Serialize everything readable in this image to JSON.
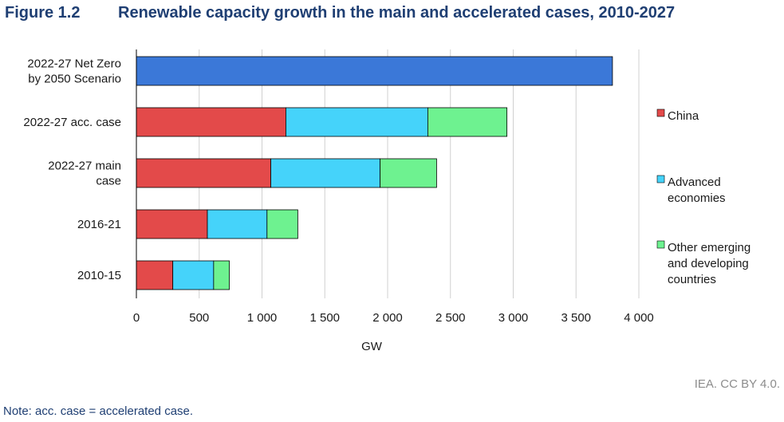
{
  "figure_label": "Figure 1.2",
  "title": "Renewable capacity growth in the main and accelerated cases, 2010-2027",
  "credit": "IEA. CC BY 4.0.",
  "note": "Note: acc. case = accelerated case.",
  "colors": {
    "china": "#e34a4a",
    "advanced": "#45d3fa",
    "other": "#6ef290",
    "netzero": "#3b78d8",
    "grid": "#d0d0d0",
    "axis": "#000000"
  },
  "chart_data": {
    "type": "bar",
    "orientation": "horizontal",
    "stacked": true,
    "categories": [
      "2022-27 Net Zero by 2050 Scenario",
      "2022-27 acc. case",
      "2022-27 main case",
      "2016-21",
      "2010-15"
    ],
    "category_lines": [
      [
        "2022-27 Net Zero",
        "by 2050 Scenario"
      ],
      [
        "2022-27 acc. case"
      ],
      [
        "2022-27 main",
        "case"
      ],
      [
        "2016-21"
      ],
      [
        "2010-15"
      ]
    ],
    "series": [
      {
        "name": "China",
        "color": "#e34a4a",
        "values": [
          null,
          1190,
          1070,
          565,
          290
        ]
      },
      {
        "name": "Advanced economies",
        "color": "#45d3fa",
        "values": [
          null,
          1130,
          870,
          475,
          325
        ]
      },
      {
        "name": "Other emerging and developing countries",
        "color": "#6ef290",
        "values": [
          null,
          630,
          450,
          245,
          125
        ]
      },
      {
        "name": "",
        "color": "#3b78d8",
        "values": [
          3790,
          null,
          null,
          null,
          null
        ]
      }
    ],
    "legend": [
      {
        "lines": [
          "China"
        ],
        "color": "#e34a4a"
      },
      {
        "lines": [
          "Advanced",
          "economies"
        ],
        "color": "#45d3fa"
      },
      {
        "lines": [
          "Other emerging",
          "and developing",
          "countries"
        ],
        "color": "#6ef290"
      }
    ],
    "legend_position": "right",
    "xlabel": "GW",
    "xlim": [
      0,
      4000
    ],
    "xticks": [
      0,
      500,
      1000,
      1500,
      2000,
      2500,
      3000,
      3500,
      4000
    ],
    "xtick_labels": [
      "0",
      "500",
      "1 000",
      "1 500",
      "2 000",
      "2 500",
      "3 000",
      "3 500",
      "4 000"
    ],
    "grid": "vertical"
  }
}
